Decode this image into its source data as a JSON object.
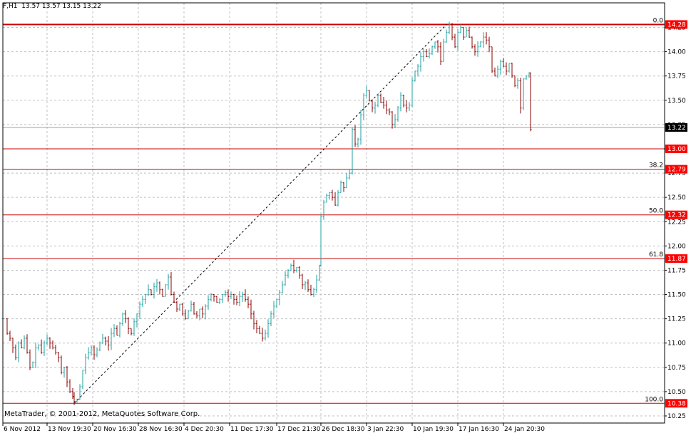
{
  "header": {
    "symbol": "F,H1",
    "ohlc": "13.57 13.57 13.15 13.22"
  },
  "copyright": "MetaTrader, © 2001-2012, MetaQuotes Software Corp.",
  "colors": {
    "background": "#ffffff",
    "grid": "#c0c0c0",
    "bar": "#1fa0a0",
    "bar_down": "#8b0000",
    "fib_line": "#cc0000",
    "tag_bg": "#ff0000",
    "current_tag_bg": "#000000"
  },
  "chart_data": {
    "type": "ohlc-bar",
    "symbol": "F",
    "timeframe": "H1",
    "ylim": [
      10.2,
      14.42
    ],
    "y_ticks": [
      "10.25",
      "10.50",
      "10.75",
      "11.00",
      "11.25",
      "11.50",
      "11.75",
      "12.00",
      "12.25",
      "12.50",
      "12.75",
      "13.00",
      "13.25",
      "13.50",
      "13.75",
      "14.00",
      "14.25"
    ],
    "x_ticks": [
      "6 Nov 2012",
      "13 Nov 19:30",
      "20 Nov 16:30",
      "28 Nov 16:30",
      "4 Dec 20:30",
      "11 Dec 17:30",
      "17 Dec 21:30",
      "26 Dec 18:30",
      "3 Jan 22:30",
      "10 Jan 19:30",
      "17 Jan 16:30",
      "24 Jan 20:30"
    ],
    "current_price": 13.22,
    "current_price_label": "13.22",
    "fibonacci": {
      "low": 10.38,
      "high": 14.28,
      "levels": [
        {
          "ratio": "0.0",
          "price": 14.28,
          "price_label": "14.28"
        },
        {
          "ratio": "",
          "price": 13.0,
          "price_label": "13.00"
        },
        {
          "ratio": "38.2",
          "price": 12.79,
          "price_label": "12.79"
        },
        {
          "ratio": "50.0",
          "price": 12.32,
          "price_label": "12.32"
        },
        {
          "ratio": "61.8",
          "price": 11.87,
          "price_label": "11.87"
        },
        {
          "ratio": "100.0",
          "price": 10.38,
          "price_label": "10.38"
        }
      ]
    },
    "close_path": [
      [
        0,
        11.25
      ],
      [
        6,
        11.1
      ],
      [
        10,
        11.05
      ],
      [
        14,
        10.95
      ],
      [
        18,
        10.85
      ],
      [
        22,
        11.0
      ],
      [
        26,
        10.95
      ],
      [
        30,
        11.05
      ],
      [
        34,
        10.9
      ],
      [
        38,
        10.75
      ],
      [
        42,
        10.8
      ],
      [
        46,
        10.95
      ],
      [
        50,
        10.98
      ],
      [
        54,
        10.9
      ],
      [
        58,
        11.0
      ],
      [
        62,
        11.05
      ],
      [
        66,
        11.0
      ],
      [
        70,
        10.95
      ],
      [
        74,
        10.9
      ],
      [
        78,
        10.85
      ],
      [
        82,
        10.7
      ],
      [
        86,
        10.75
      ],
      [
        90,
        10.6
      ],
      [
        94,
        10.5
      ],
      [
        98,
        10.45
      ],
      [
        100,
        10.4
      ],
      [
        104,
        10.42
      ],
      [
        108,
        10.55
      ],
      [
        112,
        10.72
      ],
      [
        116,
        10.85
      ],
      [
        120,
        10.9
      ],
      [
        124,
        10.95
      ],
      [
        128,
        10.88
      ],
      [
        132,
        10.93
      ],
      [
        136,
        11.0
      ],
      [
        140,
        11.05
      ],
      [
        144,
        11.02
      ],
      [
        148,
        10.98
      ],
      [
        152,
        11.1
      ],
      [
        156,
        11.15
      ],
      [
        160,
        11.08
      ],
      [
        164,
        11.2
      ],
      [
        168,
        11.3
      ],
      [
        172,
        11.25
      ],
      [
        176,
        11.15
      ],
      [
        180,
        11.1
      ],
      [
        184,
        11.22
      ],
      [
        188,
        11.3
      ],
      [
        192,
        11.4
      ],
      [
        196,
        11.45
      ],
      [
        200,
        11.5
      ],
      [
        204,
        11.55
      ],
      [
        208,
        11.5
      ],
      [
        212,
        11.58
      ],
      [
        216,
        11.62
      ],
      [
        220,
        11.55
      ],
      [
        224,
        11.48
      ],
      [
        228,
        11.6
      ],
      [
        232,
        11.68
      ],
      [
        236,
        11.5
      ],
      [
        240,
        11.42
      ],
      [
        244,
        11.35
      ],
      [
        248,
        11.4
      ],
      [
        252,
        11.3
      ],
      [
        256,
        11.25
      ],
      [
        260,
        11.33
      ],
      [
        264,
        11.4
      ],
      [
        268,
        11.3
      ],
      [
        272,
        11.28
      ],
      [
        276,
        11.35
      ],
      [
        280,
        11.3
      ],
      [
        284,
        11.38
      ],
      [
        288,
        11.45
      ],
      [
        292,
        11.5
      ],
      [
        296,
        11.48
      ],
      [
        300,
        11.42
      ],
      [
        304,
        11.45
      ],
      [
        308,
        11.5
      ],
      [
        312,
        11.52
      ],
      [
        316,
        11.48
      ],
      [
        320,
        11.5
      ],
      [
        324,
        11.45
      ],
      [
        328,
        11.42
      ],
      [
        332,
        11.48
      ],
      [
        336,
        11.5
      ],
      [
        340,
        11.45
      ],
      [
        344,
        11.4
      ],
      [
        348,
        11.3
      ],
      [
        352,
        11.2
      ],
      [
        356,
        11.15
      ],
      [
        360,
        11.1
      ],
      [
        364,
        11.05
      ],
      [
        368,
        11.1
      ],
      [
        372,
        11.2
      ],
      [
        376,
        11.3
      ],
      [
        380,
        11.38
      ],
      [
        384,
        11.45
      ],
      [
        388,
        11.52
      ],
      [
        392,
        11.6
      ],
      [
        396,
        11.7
      ],
      [
        400,
        11.75
      ],
      [
        404,
        11.8
      ],
      [
        408,
        11.75
      ],
      [
        412,
        11.78
      ],
      [
        416,
        11.7
      ],
      [
        420,
        11.6
      ],
      [
        424,
        11.62
      ],
      [
        428,
        11.55
      ],
      [
        432,
        11.5
      ],
      [
        436,
        11.55
      ],
      [
        440,
        11.65
      ],
      [
        444,
        11.8
      ],
      [
        446,
        12.3
      ],
      [
        450,
        12.45
      ],
      [
        454,
        12.52
      ],
      [
        458,
        12.55
      ],
      [
        462,
        12.5
      ],
      [
        466,
        12.42
      ],
      [
        470,
        12.55
      ],
      [
        474,
        12.65
      ],
      [
        478,
        12.6
      ],
      [
        482,
        12.7
      ],
      [
        486,
        12.75
      ],
      [
        490,
        13.2
      ],
      [
        494,
        13.05
      ],
      [
        498,
        13.1
      ],
      [
        502,
        13.35
      ],
      [
        506,
        13.55
      ],
      [
        510,
        13.6
      ],
      [
        514,
        13.5
      ],
      [
        518,
        13.42
      ],
      [
        522,
        13.45
      ],
      [
        526,
        13.55
      ],
      [
        530,
        13.48
      ],
      [
        534,
        13.45
      ],
      [
        538,
        13.4
      ],
      [
        542,
        13.38
      ],
      [
        546,
        13.25
      ],
      [
        550,
        13.3
      ],
      [
        554,
        13.42
      ],
      [
        558,
        13.55
      ],
      [
        562,
        13.45
      ],
      [
        566,
        13.42
      ],
      [
        570,
        13.45
      ],
      [
        574,
        13.7
      ],
      [
        578,
        13.8
      ],
      [
        582,
        13.85
      ],
      [
        586,
        13.95
      ],
      [
        590,
        14.0
      ],
      [
        594,
        13.95
      ],
      [
        598,
        13.98
      ],
      [
        602,
        14.05
      ],
      [
        606,
        14.1
      ],
      [
        610,
        14.05
      ],
      [
        614,
        13.9
      ],
      [
        618,
        14.1
      ],
      [
        622,
        14.2
      ],
      [
        626,
        14.28
      ],
      [
        630,
        14.15
      ],
      [
        634,
        14.05
      ],
      [
        638,
        14.2
      ],
      [
        642,
        14.25
      ],
      [
        646,
        14.15
      ],
      [
        650,
        14.22
      ],
      [
        654,
        14.15
      ],
      [
        658,
        14.05
      ],
      [
        662,
        14.0
      ],
      [
        666,
        14.05
      ],
      [
        670,
        14.1
      ],
      [
        674,
        14.15
      ],
      [
        678,
        14.12
      ],
      [
        682,
        14.05
      ],
      [
        686,
        13.8
      ],
      [
        690,
        13.75
      ],
      [
        694,
        13.82
      ],
      [
        698,
        13.9
      ],
      [
        702,
        13.85
      ],
      [
        706,
        13.8
      ],
      [
        710,
        13.88
      ],
      [
        714,
        13.75
      ],
      [
        718,
        13.65
      ],
      [
        722,
        13.7
      ],
      [
        726,
        13.42
      ],
      [
        730,
        13.72
      ],
      [
        734,
        13.75
      ],
      [
        738,
        13.78
      ],
      [
        740,
        13.2
      ]
    ]
  }
}
